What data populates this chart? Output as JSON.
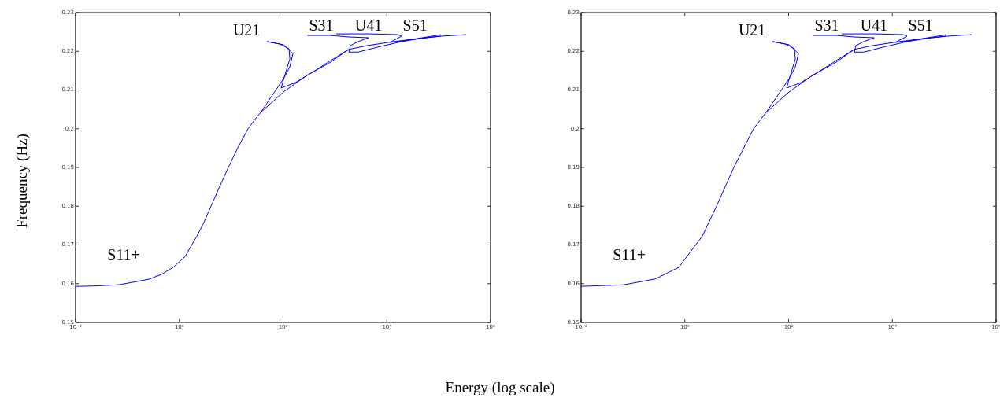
{
  "chart_data": [
    {
      "type": "line",
      "ylabel": "Frequency (Hz)",
      "xlabel": "Energy (log scale)",
      "log": "x",
      "grid": false,
      "legend": false,
      "marker": "none",
      "line_style": "solid",
      "xlim": [
        0.01,
        1000000
      ],
      "xticks": [
        {
          "value": 0.01,
          "label": "10⁻²"
        },
        {
          "value": 1,
          "label": "10⁰"
        },
        {
          "value": 100,
          "label": "10²"
        },
        {
          "value": 10000,
          "label": "10⁴"
        },
        {
          "value": 1000000,
          "label": "10⁶"
        }
      ],
      "ylim": [
        0.15,
        0.23
      ],
      "yticks": [
        0.15,
        0.16,
        0.17,
        0.18,
        0.19,
        0.2,
        0.21,
        0.22,
        0.23
      ],
      "series": [
        {
          "color": "#0000ff",
          "x": [
            0.01,
            0.0231,
            0.066,
            0.133,
            0.267,
            0.452,
            0.762,
            1.29,
            2.18,
            2.88,
            4.08,
            6.0,
            8.8,
            13.4,
            21.1,
            27.9,
            36.9,
            102,
            290,
            828,
            1850,
            4290,
            13600,
            43000,
            111000,
            338000
          ],
          "values": [
            0.1593,
            0.1594,
            0.1597,
            0.1604,
            0.1612,
            0.1624,
            0.1642,
            0.167,
            0.1723,
            0.1754,
            0.18,
            0.1851,
            0.19,
            0.1951,
            0.2,
            0.2022,
            0.2042,
            0.2095,
            0.2138,
            0.2172,
            0.2205,
            0.2215,
            0.2225,
            0.2233,
            0.2239,
            0.2243
          ]
        },
        {
          "color": "#0000ff",
          "x": [
            36.9,
            71.8,
            102,
            135,
            155,
            102,
            48.9
          ],
          "values": [
            0.2042,
            0.2099,
            0.2129,
            0.216,
            0.2194,
            0.2217,
            0.2225
          ]
        },
        {
          "color": "#0000ff",
          "x": [
            48.9,
            85.5,
            130,
            135,
            109,
            91.6,
            172,
            412,
            828,
            1850
          ],
          "values": [
            0.2225,
            0.2219,
            0.2207,
            0.218,
            0.214,
            0.2105,
            0.2119,
            0.215,
            0.2176,
            0.2205
          ]
        },
        {
          "color": "#0000ff",
          "x": [
            290,
            828,
            1850,
            4440,
            2820,
            1990,
            1850,
            2820,
            6750,
            19300,
            55000,
            111000
          ],
          "values": [
            0.2241,
            0.2241,
            0.2237,
            0.2235,
            0.2225,
            0.2215,
            0.2198,
            0.2198,
            0.2211,
            0.2225,
            0.2235,
            0.2239
          ]
        },
        {
          "color": "#0000ff",
          "x": [
            1060,
            4760,
            16200,
            19300,
            11400,
            16200,
            38700,
            92900,
            111000
          ],
          "values": [
            0.2245,
            0.2245,
            0.2243,
            0.2239,
            0.2223,
            0.2225,
            0.2233,
            0.2241,
            0.2243
          ]
        }
      ],
      "annotations": [
        "S11+",
        "U21",
        "S31",
        "U41",
        "S51"
      ]
    },
    {
      "type": "line",
      "log": "x",
      "grid": false,
      "legend": false,
      "marker": "none",
      "line_style": "solid",
      "xlim": [
        0.01,
        1000000
      ],
      "xticks": [
        {
          "value": 0.01,
          "label": "10⁻²"
        },
        {
          "value": 1,
          "label": "10⁰"
        },
        {
          "value": 100,
          "label": "10²"
        },
        {
          "value": 10000,
          "label": "10⁴"
        },
        {
          "value": 1000000,
          "label": "10⁶"
        }
      ],
      "ylim": [
        0.15,
        0.23
      ],
      "yticks": [
        0.15,
        0.16,
        0.17,
        0.18,
        0.19,
        0.2,
        0.21,
        0.22,
        0.23
      ],
      "series": [
        {
          "color": "#0000ff",
          "x": [
            0.01,
            0.066,
            0.267,
            0.762,
            2.18,
            4.08,
            8.8,
            21.1,
            36.9,
            102,
            290,
            828,
            1850,
            4290,
            13600,
            43000,
            111000,
            338000
          ],
          "values": [
            0.1593,
            0.1597,
            0.1612,
            0.1642,
            0.1723,
            0.18,
            0.19,
            0.2,
            0.2042,
            0.2095,
            0.2138,
            0.2172,
            0.2205,
            0.2215,
            0.2225,
            0.2233,
            0.2239,
            0.2243
          ]
        },
        {
          "color": "#0000ff",
          "x": [
            36.9,
            71.8,
            102,
            135,
            155,
            102,
            48.9
          ],
          "values": [
            0.2042,
            0.2099,
            0.2129,
            0.216,
            0.2194,
            0.2217,
            0.2225
          ]
        },
        {
          "color": "#0000ff",
          "x": [
            48.9,
            85.5,
            130,
            135,
            109,
            91.6,
            172,
            412,
            828,
            1850
          ],
          "values": [
            0.2225,
            0.2219,
            0.2207,
            0.218,
            0.214,
            0.2105,
            0.2119,
            0.215,
            0.2176,
            0.2205
          ]
        },
        {
          "color": "#0000ff",
          "x": [
            290,
            828,
            1850,
            4440,
            2820,
            1990,
            1850,
            2820,
            6750,
            19300,
            55000,
            111000
          ],
          "values": [
            0.2241,
            0.2241,
            0.2237,
            0.2235,
            0.2225,
            0.2215,
            0.2198,
            0.2198,
            0.2211,
            0.2225,
            0.2235,
            0.2239
          ]
        },
        {
          "color": "#0000ff",
          "x": [
            1060,
            4760,
            16200,
            19300,
            11400,
            16200,
            38700,
            92900,
            111000
          ],
          "values": [
            0.2245,
            0.2245,
            0.2243,
            0.2239,
            0.2223,
            0.2225,
            0.2233,
            0.2241,
            0.2243
          ]
        }
      ],
      "annotations": [
        "S11+",
        "U21",
        "S31",
        "U41",
        "S51"
      ]
    }
  ]
}
